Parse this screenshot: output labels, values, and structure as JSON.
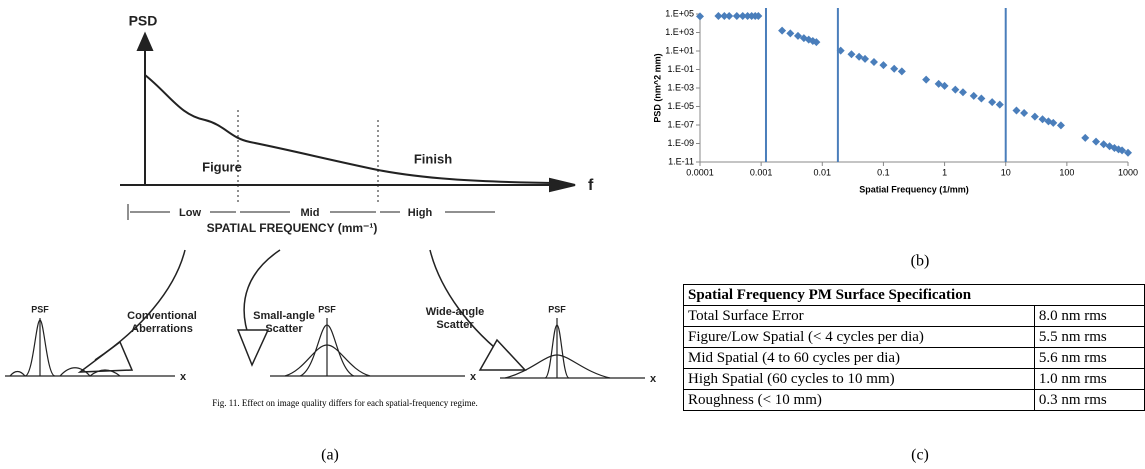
{
  "diagram": {
    "y_axis": "PSD",
    "x_axis": "f",
    "regions": [
      "Figure",
      "Finish"
    ],
    "bands": [
      "Low",
      "Mid",
      "High"
    ],
    "axis_title": "SPATIAL FREQUENCY (mm⁻¹)",
    "psf_labels": [
      "PSF",
      "PSF",
      "PSF"
    ],
    "effects": [
      [
        "Conventional",
        "Aberrations"
      ],
      [
        "Small-angle",
        "Scatter"
      ],
      [
        "Wide-angle",
        "Scatter"
      ]
    ],
    "psf_axes": [
      "x",
      "x",
      "x"
    ],
    "caption": "Fig. 11.   Effect on image quality differs for each spatial-frequency regime.",
    "label": "(a)"
  },
  "chart_data": {
    "type": "scatter",
    "x_label": "Spatial Frequency (1/mm)",
    "y_label": "PSD (nm^2 mm)",
    "label": "(b)",
    "xlog": true,
    "ylog": true,
    "color": "#4a7ebb",
    "xlim": [
      0.0001,
      1000
    ],
    "xticks": [
      0.0001,
      0.001,
      0.01,
      0.1,
      1,
      10,
      100,
      1000
    ],
    "ylim": [
      1e-11,
      100000
    ],
    "yticks": [
      {
        "value": 100000,
        "label": "1.E+05"
      },
      {
        "value": 1000,
        "label": "1.E+03"
      },
      {
        "value": 10,
        "label": "1.E+01"
      },
      {
        "value": 0.1,
        "label": "1.E-01"
      },
      {
        "value": 0.001,
        "label": "1.E-03"
      },
      {
        "value": 1e-05,
        "label": "1.E-05"
      },
      {
        "value": 1e-07,
        "label": "1.E-07"
      },
      {
        "value": 1e-09,
        "label": "1.E-09"
      },
      {
        "value": 1e-11,
        "label": "1.E-11"
      }
    ],
    "x": [
      0.0001,
      0.0002,
      0.00025,
      0.0003,
      0.0004,
      0.0005,
      0.0006,
      0.0007,
      0.0008,
      0.0009,
      0.0022,
      0.003,
      0.004,
      0.005,
      0.006,
      0.007,
      0.008,
      0.02,
      0.03,
      0.04,
      0.05,
      0.07,
      0.1,
      0.15,
      0.2,
      0.5,
      0.8,
      1,
      1.5,
      2,
      3,
      4,
      6,
      8,
      15,
      20,
      30,
      40,
      50,
      60,
      80,
      200,
      300,
      400,
      500,
      600,
      700,
      800,
      1000
    ],
    "values": [
      55000,
      60000,
      60000,
      60000,
      60000,
      60000,
      60000,
      60000,
      60000,
      60000,
      1600,
      800,
      430,
      250,
      170,
      120,
      90,
      11,
      4.4,
      2.4,
      1.4,
      0.65,
      0.3,
      0.12,
      0.063,
      0.008,
      0.0028,
      0.0017,
      0.00066,
      0.00035,
      0.00014,
      7.4e-05,
      3e-05,
      1.6e-05,
      3.7e-06,
      2e-06,
      8e-07,
      4.2e-07,
      2.5e-07,
      1.7e-07,
      9e-08,
      4e-09,
      1.6e-09,
      8.3e-10,
      5e-10,
      3.3e-10,
      2.3e-10,
      1.8e-10,
      1e-10
    ],
    "vlines": {
      "x": [
        0.0012,
        0.018,
        10
      ],
      "color": "#4a7ebb"
    }
  },
  "table": {
    "title": "Spatial Frequency PM Surface Specification",
    "rows": [
      [
        "Total Surface Error",
        "8.0 nm rms"
      ],
      [
        "Figure/Low Spatial (< 4 cycles per dia)",
        "5.5 nm rms"
      ],
      [
        "Mid Spatial (4 to 60 cycles per dia)",
        "5.6 nm rms"
      ],
      [
        "High Spatial (60 cycles to 10 mm)",
        "1.0 nm rms"
      ],
      [
        "Roughness (< 10 mm)",
        "0.3 nm rms"
      ]
    ],
    "label": "(c)"
  }
}
